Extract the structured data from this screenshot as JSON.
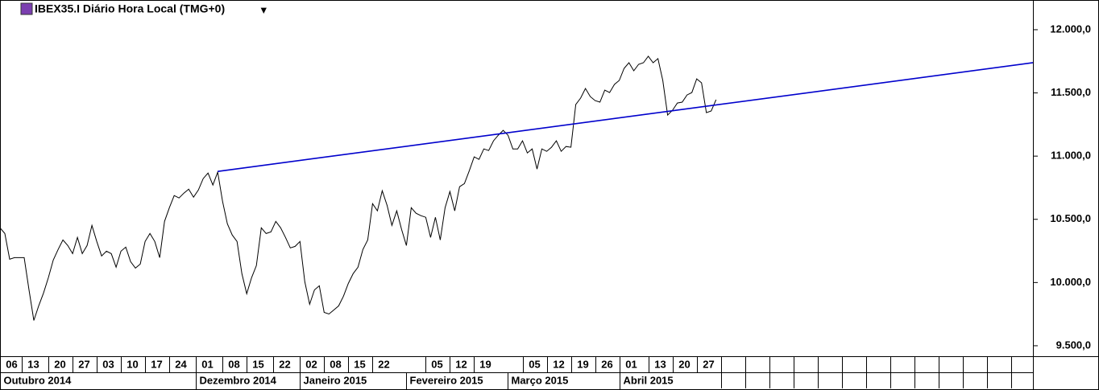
{
  "chart_data": {
    "type": "line",
    "title": "IBEX35.I Diário Hora Local (TMG+0)",
    "series": [
      {
        "color": "#000000",
        "values": [
          10433,
          10388,
          10185,
          10197,
          10197,
          10197,
          9942,
          9700,
          9815,
          9917,
          10038,
          10178,
          10261,
          10337,
          10293,
          10229,
          10357,
          10229,
          10293,
          10452,
          10325,
          10210,
          10248,
          10229,
          10121,
          10248,
          10280,
          10165,
          10114,
          10146,
          10325,
          10388,
          10325,
          10197,
          10484,
          10592,
          10688,
          10669,
          10707,
          10739,
          10675,
          10732,
          10822,
          10866,
          10771,
          10873,
          10643,
          10465,
          10376,
          10325,
          10070,
          9911,
          10038,
          10134,
          10433,
          10388,
          10401,
          10484,
          10433,
          10357,
          10274,
          10286,
          10325,
          10006,
          9828,
          9942,
          9974,
          9764,
          9751,
          9783,
          9815,
          9892,
          9993,
          10070,
          10121,
          10261,
          10337,
          10624,
          10567,
          10726,
          10611,
          10452,
          10567,
          10420,
          10293,
          10592,
          10548,
          10529,
          10516,
          10357,
          10516,
          10337,
          10592,
          10720,
          10567,
          10758,
          10783,
          10885,
          10994,
          10974,
          11057,
          11044,
          11121,
          11166,
          11204,
          11166,
          11057,
          11057,
          11121,
          11025,
          11057,
          10898,
          11057,
          11038,
          11070,
          11121,
          11038,
          11076,
          11070,
          11408,
          11459,
          11535,
          11471,
          11439,
          11427,
          11522,
          11503,
          11567,
          11599,
          11694,
          11739,
          11675,
          11726,
          11739,
          11790,
          11739,
          11771,
          11599,
          11325,
          11363,
          11420,
          11427,
          11484,
          11503,
          11611,
          11580,
          11344,
          11357,
          11446
        ]
      }
    ],
    "trendline": {
      "x": [
        45,
        213.5
      ],
      "values": [
        10879,
        11739
      ],
      "color": "#0000cc"
    },
    "xlim": [
      0,
      213.5
    ],
    "xticks": [
      {
        "value": 0,
        "label": "06"
      },
      {
        "value": 4.5,
        "label": "13"
      },
      {
        "value": 10,
        "label": "20"
      },
      {
        "value": 15,
        "label": "27"
      },
      {
        "value": 20,
        "label": "03"
      },
      {
        "value": 25,
        "label": "10"
      },
      {
        "value": 30,
        "label": "17"
      },
      {
        "value": 35,
        "label": "24"
      },
      {
        "value": 40.5,
        "label": "01"
      },
      {
        "value": 46,
        "label": "08"
      },
      {
        "value": 51,
        "label": "15"
      },
      {
        "value": 56.5,
        "label": "22"
      },
      {
        "value": 62,
        "label": "02"
      },
      {
        "value": 67,
        "label": "08"
      },
      {
        "value": 72,
        "label": "15"
      },
      {
        "value": 77,
        "label": "22"
      },
      {
        "value": 88,
        "label": "05"
      },
      {
        "value": 93,
        "label": "12"
      },
      {
        "value": 98,
        "label": "19"
      },
      {
        "value": 108,
        "label": "05"
      },
      {
        "value": 113,
        "label": "12"
      },
      {
        "value": 118,
        "label": "19"
      },
      {
        "value": 123,
        "label": "26"
      },
      {
        "value": 128,
        "label": "01"
      },
      {
        "value": 134,
        "label": "13"
      },
      {
        "value": 139,
        "label": "20"
      },
      {
        "value": 144,
        "label": "27"
      }
    ],
    "month_ticks": [
      {
        "value": 0,
        "label": "Outubro 2014"
      },
      {
        "value": 40.5,
        "label": "Dezembro 2014"
      },
      {
        "value": 62,
        "label": "Janeiro 2015"
      },
      {
        "value": 84,
        "label": "Fevereiro 2015"
      },
      {
        "value": 105,
        "label": "Março 2015"
      },
      {
        "value": 128,
        "label": "Abril 2015"
      }
    ],
    "ylim": [
      9417,
      12235
    ],
    "yticks": [
      {
        "value": 9500,
        "label": "9.500,0"
      },
      {
        "value": 10000,
        "label": "10.000,0"
      },
      {
        "value": 10500,
        "label": "10.500,0"
      },
      {
        "value": 11000,
        "label": "11.000,0"
      },
      {
        "value": 11500,
        "label": "11.500,0"
      },
      {
        "value": 12000,
        "label": "12.000,0"
      }
    ],
    "grid": false
  }
}
